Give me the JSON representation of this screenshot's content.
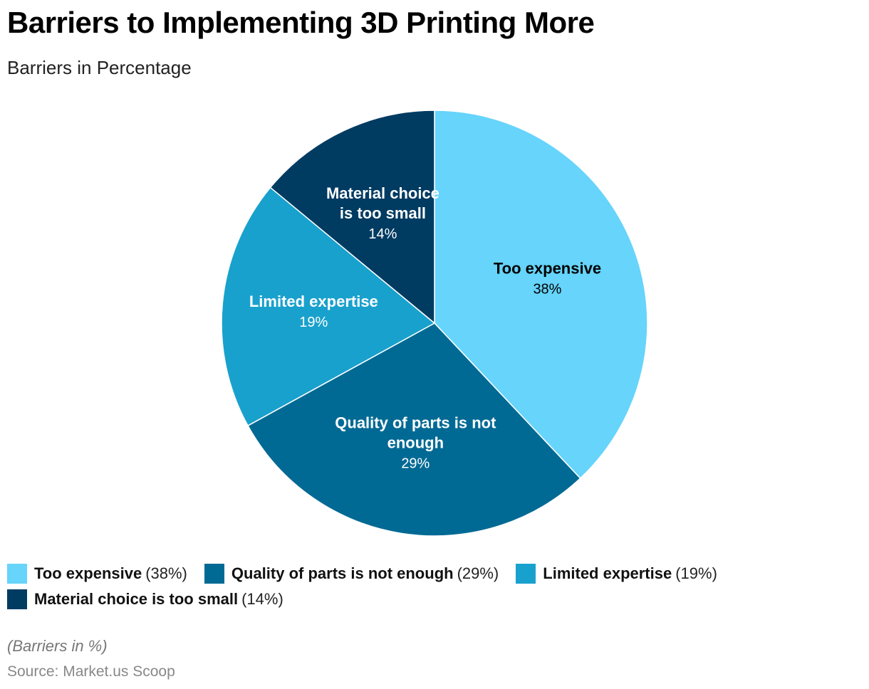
{
  "title": "Barriers to Implementing 3D Printing More",
  "subtitle": "Barriers in Percentage",
  "note": "(Barriers in %)",
  "source": "Source: Market.us Scoop",
  "chart_data": {
    "type": "pie",
    "title": "Barriers to Implementing 3D Printing More",
    "subtitle": "Barriers in Percentage",
    "unit": "%",
    "legend_position": "bottom",
    "slices": [
      {
        "name": "Too expensive",
        "value": 38,
        "value_label": "38%",
        "legend_value": "(38%)",
        "label_lines": [
          "Too expensive"
        ],
        "color": "#66d4fb",
        "text_color": "#000000"
      },
      {
        "name": "Quality of parts is not enough",
        "value": 29,
        "value_label": "29%",
        "legend_value": "(29%)",
        "label_lines": [
          "Quality of parts is not",
          "enough"
        ],
        "color": "#016a94",
        "text_color": "#ffffff"
      },
      {
        "name": "Limited expertise",
        "value": 19,
        "value_label": "19%",
        "legend_value": "(19%)",
        "label_lines": [
          "Limited expertise"
        ],
        "color": "#19a1cd",
        "text_color": "#ffffff"
      },
      {
        "name": "Material choice is too small",
        "value": 14,
        "value_label": "14%",
        "legend_value": "(14%)",
        "label_lines": [
          "Material choice",
          "is too small"
        ],
        "color": "#003b62",
        "text_color": "#ffffff"
      }
    ]
  }
}
